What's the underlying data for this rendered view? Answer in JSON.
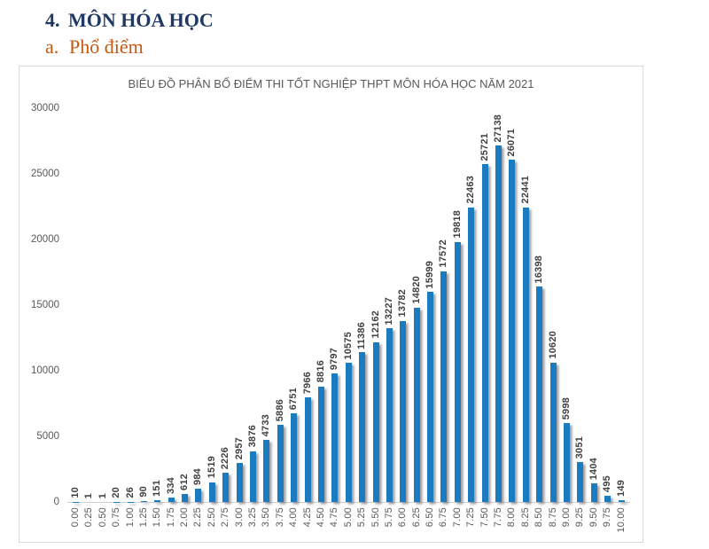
{
  "page": {
    "heading_number": "4.",
    "heading_text": "MÔN HÓA HỌC",
    "subheading_letter": "a.",
    "subheading_text": "Phổ điểm"
  },
  "colors": {
    "heading": "#1F3864",
    "subheading": "#C45911",
    "bar": "#1B7BBF",
    "axis_label": "#595959",
    "value_label": "#404040",
    "chart_border": "#D9D9D9",
    "title": "#595959"
  },
  "chart_data": {
    "type": "bar",
    "title": "BIỂU ĐỒ PHÂN BỐ ĐIỂM THI TỐT NGHIỆP THPT MÔN HÓA HỌC NĂM 2021",
    "xlabel": "",
    "ylabel": "",
    "categories": [
      "0.00",
      "0.25",
      "0.50",
      "0.75",
      "1.00",
      "1.25",
      "1.50",
      "1.75",
      "2.00",
      "2.25",
      "2.50",
      "2.75",
      "3.00",
      "3.25",
      "3.50",
      "3.75",
      "4.00",
      "4.25",
      "4.50",
      "4.75",
      "5.00",
      "5.25",
      "5.50",
      "5.75",
      "6.00",
      "6.25",
      "6.50",
      "6.75",
      "7.00",
      "7.25",
      "7.50",
      "7.75",
      "8.00",
      "8.25",
      "8.50",
      "8.75",
      "9.00",
      "9.25",
      "9.50",
      "9.75",
      "10.00"
    ],
    "values": [
      10,
      1,
      1,
      20,
      26,
      90,
      151,
      334,
      612,
      984,
      1519,
      2226,
      2957,
      3876,
      4733,
      5886,
      6751,
      7966,
      8816,
      9797,
      10575,
      11386,
      12162,
      13227,
      13782,
      14820,
      15999,
      17572,
      19818,
      22463,
      25721,
      27138,
      26071,
      22441,
      16398,
      10620,
      5998,
      3051,
      1404,
      495,
      149
    ],
    "ylim": [
      0,
      30000
    ],
    "yticks": [
      0,
      5000,
      10000,
      15000,
      20000,
      25000,
      30000
    ],
    "grid": false,
    "legend": null,
    "bar_labels_rotated": true,
    "xtick_labels_rotated": true
  }
}
